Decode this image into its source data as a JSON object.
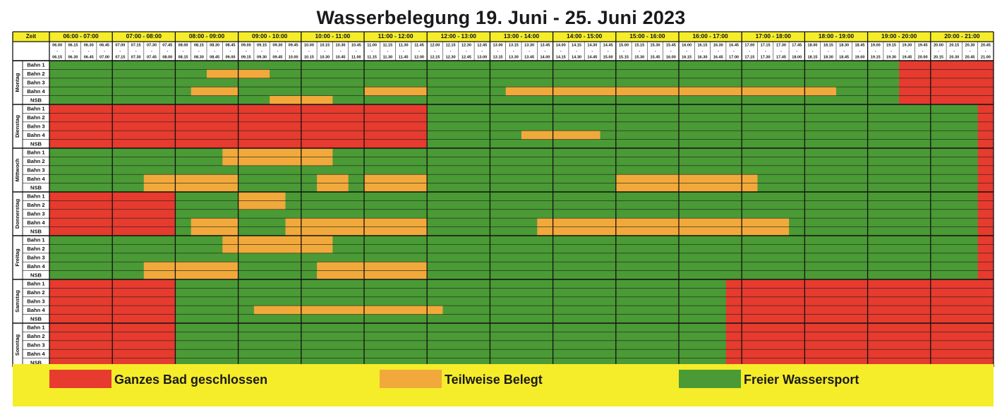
{
  "title": "Wasserbelegung 19. Juni - 25. Juni 2023",
  "header": {
    "zeit_label": "Zeit",
    "hours": [
      "06:00 - 07:00",
      "07:00 - 08:00",
      "08:00 - 09:00",
      "09:00 - 10:00",
      "10:00 - 11:00",
      "11:00 - 12:00",
      "12:00 - 13:00",
      "13:00 - 14:00",
      "14:00 - 15:00",
      "15:00 - 16:00",
      "16:00 - 17:00",
      "17:00 - 18:00",
      "18:00 - 19:00",
      "19:00 - 20:00",
      "20:00 - 21:00"
    ],
    "slots": [
      [
        "06.00",
        "06.15"
      ],
      [
        "06.15",
        "06.30"
      ],
      [
        "06.30",
        "06.45"
      ],
      [
        "06.45",
        "07.00"
      ],
      [
        "07.00",
        "07.15"
      ],
      [
        "07.15",
        "07.30"
      ],
      [
        "07.30",
        "07.45"
      ],
      [
        "07.45",
        "08.00"
      ],
      [
        "08.00",
        "08.15"
      ],
      [
        "08.15",
        "08.30"
      ],
      [
        "08.30",
        "08.45"
      ],
      [
        "08.45",
        "09.00"
      ],
      [
        "09.00",
        "09.15"
      ],
      [
        "09.15",
        "09.30"
      ],
      [
        "09.30",
        "09.45"
      ],
      [
        "09.45",
        "10.00"
      ],
      [
        "10.00",
        "10.15"
      ],
      [
        "10.15",
        "10.30"
      ],
      [
        "10.30",
        "10.45"
      ],
      [
        "10.45",
        "11.00"
      ],
      [
        "11.00",
        "11.15"
      ],
      [
        "11.15",
        "11.30"
      ],
      [
        "11.30",
        "11.45"
      ],
      [
        "11.45",
        "12.00"
      ],
      [
        "12.00",
        "12.15"
      ],
      [
        "12.15",
        "12.30"
      ],
      [
        "12.30",
        "12.45"
      ],
      [
        "12.45",
        "13.00"
      ],
      [
        "13.00",
        "13.15"
      ],
      [
        "13.15",
        "13.30"
      ],
      [
        "13.30",
        "13.45"
      ],
      [
        "13.45",
        "14.00"
      ],
      [
        "14.00",
        "14.15"
      ],
      [
        "14.15",
        "14.30"
      ],
      [
        "14.30",
        "14.45"
      ],
      [
        "14.45",
        "15.00"
      ],
      [
        "15.00",
        "15.15"
      ],
      [
        "15.15",
        "15.30"
      ],
      [
        "15.30",
        "15.45"
      ],
      [
        "15.45",
        "16.00"
      ],
      [
        "16.00",
        "16.15"
      ],
      [
        "16.15",
        "16.30"
      ],
      [
        "16.30",
        "16.45"
      ],
      [
        "16.45",
        "17.00"
      ],
      [
        "17.00",
        "17.15"
      ],
      [
        "17.15",
        "17.30"
      ],
      [
        "17.30",
        "17.45"
      ],
      [
        "17.45",
        "18.00"
      ],
      [
        "18.00",
        "18.15"
      ],
      [
        "18.15",
        "18.30"
      ],
      [
        "18.30",
        "18.45"
      ],
      [
        "18.45",
        "19.00"
      ],
      [
        "19.00",
        "19.15"
      ],
      [
        "19.15",
        "19.30"
      ],
      [
        "19.30",
        "19.45"
      ],
      [
        "19.45",
        "20.00"
      ],
      [
        "20.00",
        "20.15"
      ],
      [
        "20.15",
        "20.30"
      ],
      [
        "20.30",
        "20.45"
      ],
      [
        "20.45",
        "21.00"
      ]
    ]
  },
  "lanes": [
    "Bahn 1",
    "Bahn 2",
    "Bahn 3",
    "Bahn 4",
    "NSB"
  ],
  "colors": {
    "closed": "#e63b2e",
    "partial": "#f2a93b",
    "free": "#4a9a35",
    "header_yellow": "#f5ec2a",
    "legend_yellow": "#f5ec2a"
  },
  "status_codes": {
    "R": "closed",
    "O": "partial",
    "G": "free"
  },
  "days": [
    {
      "name": "Montag",
      "ranges": [
        [],
        [
          [
            10,
            12,
            "O"
          ],
          [
            12,
            14,
            "O"
          ]
        ],
        [],
        [
          [
            9,
            12,
            "O"
          ],
          [
            20,
            24,
            "O"
          ],
          [
            29,
            50,
            "O"
          ]
        ],
        [
          [
            14,
            18,
            "O"
          ]
        ]
      ],
      "all": [
        [
          54,
          60,
          "R"
        ]
      ]
    },
    {
      "name": "Dienstag",
      "ranges": [
        [],
        [],
        [],
        [
          [
            30,
            35,
            "O"
          ]
        ],
        []
      ],
      "all": [
        [
          0,
          24,
          "R"
        ],
        [
          59,
          60,
          "R"
        ]
      ]
    },
    {
      "name": "Mittwoch",
      "ranges": [
        [
          [
            11,
            18,
            "O"
          ]
        ],
        [
          [
            11,
            18,
            "O"
          ]
        ],
        [],
        [
          [
            6,
            12,
            "O"
          ],
          [
            17,
            19,
            "O"
          ],
          [
            20,
            24,
            "O"
          ],
          [
            36,
            45,
            "O"
          ]
        ],
        [
          [
            6,
            12,
            "O"
          ],
          [
            17,
            19,
            "O"
          ],
          [
            20,
            24,
            "O"
          ],
          [
            36,
            45,
            "O"
          ]
        ]
      ],
      "all": [
        [
          59,
          60,
          "R"
        ]
      ]
    },
    {
      "name": "Donnerstag",
      "ranges": [
        [
          [
            12,
            15,
            "O"
          ]
        ],
        [
          [
            12,
            15,
            "O"
          ]
        ],
        [],
        [
          [
            9,
            12,
            "O"
          ],
          [
            15,
            24,
            "O"
          ],
          [
            31,
            47,
            "O"
          ]
        ],
        [
          [
            9,
            12,
            "O"
          ],
          [
            15,
            24,
            "O"
          ],
          [
            31,
            47,
            "O"
          ]
        ]
      ],
      "all": [
        [
          0,
          8,
          "R"
        ],
        [
          59,
          60,
          "R"
        ]
      ]
    },
    {
      "name": "Freitag",
      "ranges": [
        [
          [
            11,
            18,
            "O"
          ]
        ],
        [
          [
            11,
            18,
            "O"
          ]
        ],
        [],
        [
          [
            6,
            12,
            "O"
          ],
          [
            17,
            24,
            "O"
          ]
        ],
        [
          [
            6,
            12,
            "O"
          ],
          [
            17,
            24,
            "O"
          ]
        ]
      ],
      "all": [
        [
          59,
          60,
          "R"
        ]
      ]
    },
    {
      "name": "Samstag",
      "ranges": [
        [],
        [],
        [],
        [
          [
            13,
            25,
            "O"
          ]
        ],
        []
      ],
      "all": [
        [
          0,
          8,
          "R"
        ],
        [
          43,
          60,
          "R"
        ]
      ]
    },
    {
      "name": "Sonntag",
      "ranges": [
        [],
        [],
        [],
        [],
        []
      ],
      "all": [
        [
          0,
          8,
          "R"
        ],
        [
          43,
          60,
          "R"
        ]
      ]
    }
  ],
  "legend": [
    {
      "label": "Ganzes Bad geschlossen",
      "status": "closed"
    },
    {
      "label": "Teilweise Belegt",
      "status": "partial"
    },
    {
      "label": "Freier Wassersport",
      "status": "free"
    }
  ]
}
